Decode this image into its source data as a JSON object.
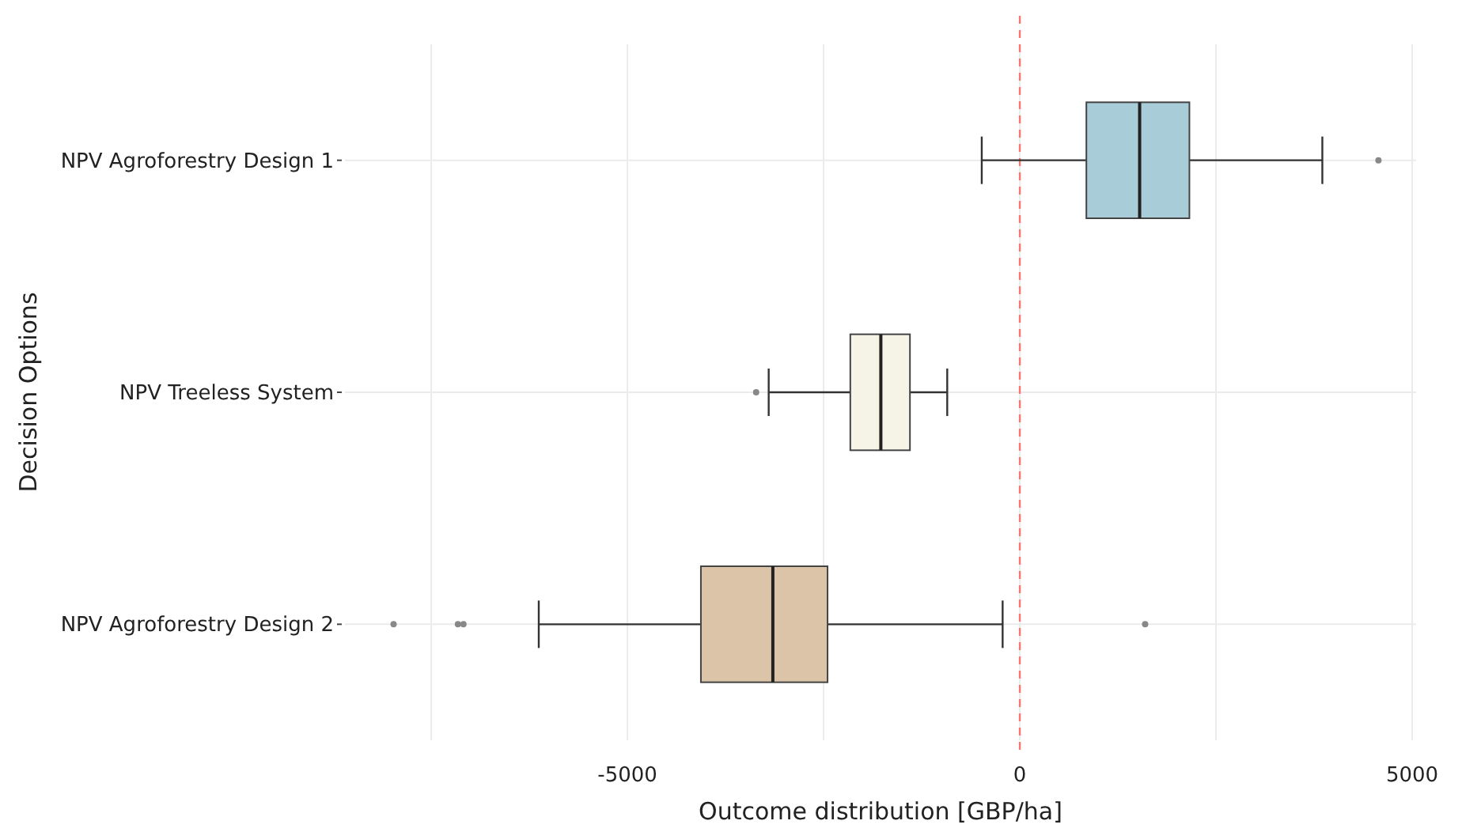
{
  "chart_data": {
    "type": "box",
    "orientation": "horizontal",
    "xlabel": "Outcome distribution [GBP/ha]",
    "ylabel": "Decision Options",
    "categories": [
      "NPV Agroforestry Design 1",
      "NPV Treeless System",
      "NPV Agroforestry Design 2"
    ],
    "colors": [
      "#a8cdd8",
      "#f6f4e6",
      "#dbc4a8"
    ],
    "boxes": [
      {
        "low": -485,
        "q1": 848,
        "median": 1527,
        "q3": 2161,
        "high": 3855,
        "outliers": [
          4570
        ]
      },
      {
        "low": -3200,
        "q1": -2160,
        "median": -1771,
        "q3": -1400,
        "high": -925,
        "outliers": [
          -3360
        ]
      },
      {
        "low": -6130,
        "q1": -4064,
        "median": -3147,
        "q3": -2450,
        "high": -219,
        "outliers": [
          -7980,
          -7160,
          -7090,
          1597
        ]
      }
    ],
    "xlim": [
      -8600,
      5050
    ],
    "xticks": [
      {
        "value": -7500,
        "label": null
      },
      -5000,
      {
        "value": -2500,
        "label": null
      },
      0,
      {
        "value": 2500,
        "label": null
      },
      5000
    ],
    "ref_lines": [
      {
        "axis": "x",
        "value": 0,
        "color": "#f8766d",
        "line_style": "dashed"
      }
    ],
    "grid": true
  }
}
